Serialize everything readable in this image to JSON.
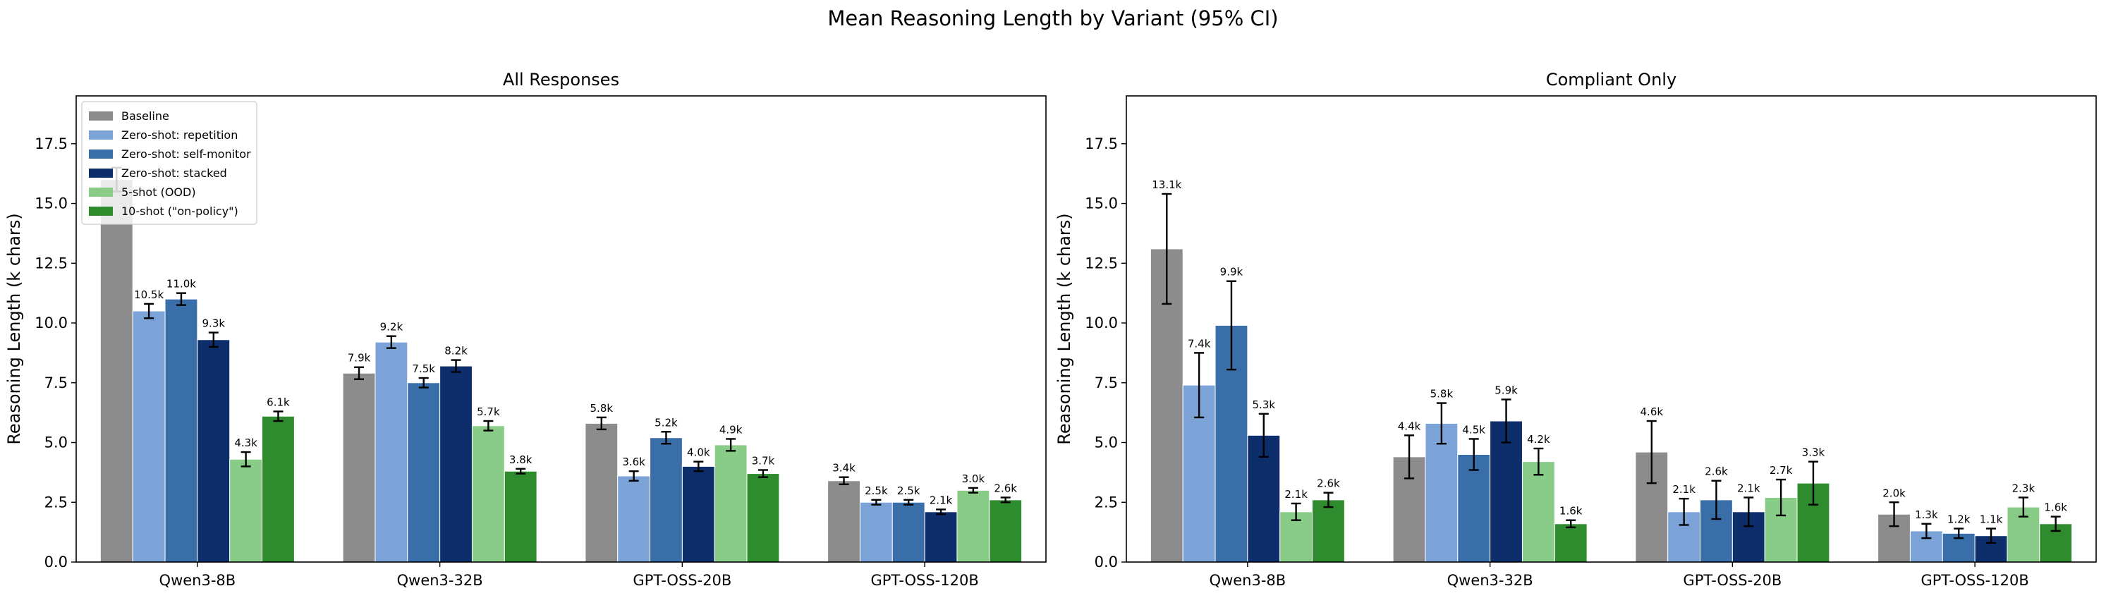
{
  "chart_data": {
    "type": "bar",
    "title": "Mean Reasoning Length by Variant (95% CI)",
    "categories": [
      "Qwen3-8B",
      "Qwen3-32B",
      "GPT-OSS-20B",
      "GPT-OSS-120B"
    ],
    "ylabel": "Reasoning Length (k chars)",
    "ylim": [
      0,
      19.5
    ],
    "yticks": [
      0.0,
      2.5,
      5.0,
      7.5,
      10.0,
      12.5,
      15.0,
      17.5
    ],
    "ytick_labels": [
      "0.0",
      "2.5",
      "5.0",
      "7.5",
      "10.0",
      "12.5",
      "15.0",
      "17.5"
    ],
    "legend_placement": "upper-left",
    "legend": [
      {
        "name": "Baseline",
        "color": "#8c8c8c"
      },
      {
        "name": "Zero-shot: repetition",
        "color": "#7ba3d8"
      },
      {
        "name": "Zero-shot: self-monitor",
        "color": "#3a6ea8"
      },
      {
        "name": "Zero-shot: stacked",
        "color": "#0d2d6b"
      },
      {
        "name": "5-shot (OOD)",
        "color": "#88cc88"
      },
      {
        "name": "10-shot (\"on-policy\")",
        "color": "#2e8b2e"
      }
    ],
    "panels": [
      {
        "title": "All Responses",
        "series": [
          {
            "values": [
              16.0,
              7.9,
              5.8,
              3.4
            ],
            "err": [
              0.5,
              0.25,
              0.25,
              0.15
            ],
            "labels": [
              "",
              "7.9k",
              "5.8k",
              "3.4k"
            ]
          },
          {
            "values": [
              10.5,
              9.2,
              3.6,
              2.5
            ],
            "err": [
              0.3,
              0.25,
              0.2,
              0.1
            ],
            "labels": [
              "10.5k",
              "9.2k",
              "3.6k",
              "2.5k"
            ]
          },
          {
            "values": [
              11.0,
              7.5,
              5.2,
              2.5
            ],
            "err": [
              0.25,
              0.2,
              0.25,
              0.1
            ],
            "labels": [
              "11.0k",
              "7.5k",
              "5.2k",
              "2.5k"
            ]
          },
          {
            "values": [
              9.3,
              8.2,
              4.0,
              2.1
            ],
            "err": [
              0.3,
              0.25,
              0.2,
              0.1
            ],
            "labels": [
              "9.3k",
              "8.2k",
              "4.0k",
              "2.1k"
            ]
          },
          {
            "values": [
              4.3,
              5.7,
              4.9,
              3.0
            ],
            "err": [
              0.3,
              0.2,
              0.25,
              0.1
            ],
            "labels": [
              "4.3k",
              "5.7k",
              "4.9k",
              "3.0k"
            ]
          },
          {
            "values": [
              6.1,
              3.8,
              3.7,
              2.6
            ],
            "err": [
              0.2,
              0.1,
              0.15,
              0.1
            ],
            "labels": [
              "6.1k",
              "3.8k",
              "3.7k",
              "2.6k"
            ]
          }
        ]
      },
      {
        "title": "Compliant Only",
        "series": [
          {
            "values": [
              13.1,
              4.4,
              4.6,
              2.0
            ],
            "err": [
              2.3,
              0.9,
              1.3,
              0.5
            ],
            "labels": [
              "13.1k",
              "4.4k",
              "4.6k",
              "2.0k"
            ]
          },
          {
            "values": [
              7.4,
              5.8,
              2.1,
              1.3
            ],
            "err": [
              1.35,
              0.85,
              0.55,
              0.3
            ],
            "labels": [
              "7.4k",
              "5.8k",
              "2.1k",
              "1.3k"
            ]
          },
          {
            "values": [
              9.9,
              4.5,
              2.6,
              1.2
            ],
            "err": [
              1.85,
              0.65,
              0.8,
              0.2
            ],
            "labels": [
              "9.9k",
              "4.5k",
              "2.6k",
              "1.2k"
            ]
          },
          {
            "values": [
              5.3,
              5.9,
              2.1,
              1.1
            ],
            "err": [
              0.9,
              0.9,
              0.6,
              0.3
            ],
            "labels": [
              "5.3k",
              "5.9k",
              "2.1k",
              "1.1k"
            ]
          },
          {
            "values": [
              2.1,
              4.2,
              2.7,
              2.3
            ],
            "err": [
              0.35,
              0.55,
              0.75,
              0.4
            ],
            "labels": [
              "2.1k",
              "4.2k",
              "2.7k",
              "2.3k"
            ]
          },
          {
            "values": [
              2.6,
              1.6,
              3.3,
              1.6
            ],
            "err": [
              0.3,
              0.15,
              0.9,
              0.3
            ],
            "labels": [
              "2.6k",
              "1.6k",
              "3.3k",
              "1.6k"
            ]
          }
        ]
      }
    ]
  }
}
